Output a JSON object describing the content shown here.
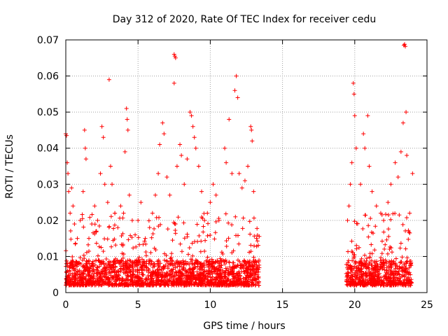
{
  "chart_data": {
    "type": "scatter",
    "title": "Day 312 of 2020, Rate Of TEC Index for receiver cedu",
    "xlabel": "GPS time / hours",
    "ylabel": "ROTI / TECUs",
    "xlim": [
      0,
      25
    ],
    "ylim": [
      0,
      0.07
    ],
    "xticks": [
      0,
      5,
      10,
      15,
      20,
      25
    ],
    "yticks": [
      0,
      0.01,
      0.02,
      0.03,
      0.04,
      0.05,
      0.06,
      0.07
    ],
    "xtick_labels": [
      "0",
      "5",
      "10",
      "15",
      "20",
      "25"
    ],
    "ytick_labels": [
      "0",
      "0.01",
      "0.02",
      "0.03",
      "0.04",
      "0.05",
      "0.06",
      "0.07"
    ],
    "grid": true,
    "marker": "+",
    "color": "#ff0000",
    "series": [
      {
        "name": "ROTI",
        "points": [
          [
            0.0,
            0.044
          ],
          [
            0.05,
            0.0435
          ],
          [
            0.1,
            0.036
          ],
          [
            0.15,
            0.033
          ],
          [
            0.2,
            0.028
          ],
          [
            0.3,
            0.022
          ],
          [
            0.4,
            0.029
          ],
          [
            0.5,
            0.024
          ],
          [
            0.6,
            0.019
          ],
          [
            0.8,
            0.015
          ],
          [
            1.0,
            0.02
          ],
          [
            1.2,
            0.028
          ],
          [
            1.3,
            0.045
          ],
          [
            1.35,
            0.04
          ],
          [
            1.4,
            0.037
          ],
          [
            1.6,
            0.015
          ],
          [
            1.8,
            0.019
          ],
          [
            2.0,
            0.024
          ],
          [
            2.2,
            0.02
          ],
          [
            2.4,
            0.033
          ],
          [
            2.5,
            0.046
          ],
          [
            2.6,
            0.043
          ],
          [
            2.7,
            0.03
          ],
          [
            2.9,
            0.025
          ],
          [
            3.0,
            0.059
          ],
          [
            3.1,
            0.035
          ],
          [
            3.2,
            0.03
          ],
          [
            3.4,
            0.022
          ],
          [
            3.6,
            0.018
          ],
          [
            3.8,
            0.024
          ],
          [
            4.0,
            0.022
          ],
          [
            4.1,
            0.039
          ],
          [
            4.2,
            0.051
          ],
          [
            4.25,
            0.048
          ],
          [
            4.3,
            0.045
          ],
          [
            4.4,
            0.027
          ],
          [
            4.6,
            0.02
          ],
          [
            4.8,
            0.016
          ],
          [
            5.0,
            0.02
          ],
          [
            5.2,
            0.025
          ],
          [
            5.5,
            0.015
          ],
          [
            5.8,
            0.018
          ],
          [
            6.0,
            0.022
          ],
          [
            6.2,
            0.027
          ],
          [
            6.4,
            0.033
          ],
          [
            6.5,
            0.041
          ],
          [
            6.7,
            0.047
          ],
          [
            6.8,
            0.044
          ],
          [
            7.0,
            0.032
          ],
          [
            7.2,
            0.027
          ],
          [
            7.5,
            0.066
          ],
          [
            7.55,
            0.0655
          ],
          [
            7.6,
            0.065
          ],
          [
            7.5,
            0.058
          ],
          [
            7.7,
            0.035
          ],
          [
            7.9,
            0.041
          ],
          [
            8.0,
            0.038
          ],
          [
            8.2,
            0.03
          ],
          [
            8.4,
            0.037
          ],
          [
            8.6,
            0.05
          ],
          [
            8.7,
            0.049
          ],
          [
            8.8,
            0.046
          ],
          [
            8.9,
            0.043
          ],
          [
            9.0,
            0.04
          ],
          [
            9.2,
            0.035
          ],
          [
            9.4,
            0.028
          ],
          [
            9.6,
            0.02
          ],
          [
            9.8,
            0.022
          ],
          [
            10.0,
            0.025
          ],
          [
            10.2,
            0.03
          ],
          [
            10.4,
            0.027
          ],
          [
            10.6,
            0.02
          ],
          [
            11.0,
            0.04
          ],
          [
            11.1,
            0.036
          ],
          [
            11.3,
            0.048
          ],
          [
            11.5,
            0.033
          ],
          [
            11.7,
            0.056
          ],
          [
            11.8,
            0.06
          ],
          [
            11.9,
            0.054
          ],
          [
            12.0,
            0.033
          ],
          [
            12.2,
            0.029
          ],
          [
            12.4,
            0.031
          ],
          [
            12.6,
            0.035
          ],
          [
            12.8,
            0.046
          ],
          [
            12.85,
            0.045
          ],
          [
            12.9,
            0.042
          ],
          [
            13.0,
            0.028
          ],
          [
            13.2,
            0.015
          ],
          [
            19.5,
            0.02
          ],
          [
            19.6,
            0.024
          ],
          [
            19.7,
            0.03
          ],
          [
            19.8,
            0.036
          ],
          [
            19.9,
            0.058
          ],
          [
            19.95,
            0.055
          ],
          [
            20.0,
            0.049
          ],
          [
            20.1,
            0.04
          ],
          [
            20.4,
            0.03
          ],
          [
            20.6,
            0.044
          ],
          [
            20.7,
            0.04
          ],
          [
            20.9,
            0.049
          ],
          [
            21.0,
            0.035
          ],
          [
            21.2,
            0.028
          ],
          [
            21.5,
            0.024
          ],
          [
            21.8,
            0.022
          ],
          [
            22.0,
            0.02
          ],
          [
            22.3,
            0.025
          ],
          [
            22.5,
            0.03
          ],
          [
            22.8,
            0.036
          ],
          [
            23.0,
            0.032
          ],
          [
            23.2,
            0.039
          ],
          [
            23.35,
            0.047
          ],
          [
            23.4,
            0.0685
          ],
          [
            23.45,
            0.0688
          ],
          [
            23.5,
            0.0682
          ],
          [
            23.55,
            0.05
          ],
          [
            23.6,
            0.038
          ],
          [
            23.8,
            0.022
          ],
          [
            24.0,
            0.033
          ]
        ],
        "dense_band": {
          "segments": [
            [
              0.0,
              13.4
            ],
            [
              19.4,
              23.95
            ]
          ],
          "floor": 0.002,
          "core_top": 0.009,
          "spike_top": 0.022
        }
      }
    ]
  }
}
